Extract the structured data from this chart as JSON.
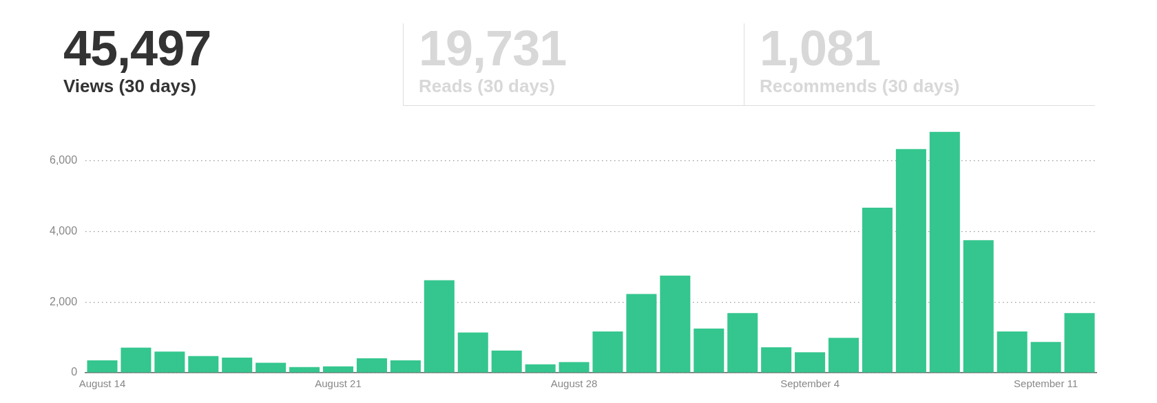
{
  "chart_data": [
    {
      "type": "other",
      "annotations": [
        "45,497",
        "Views (30 days)",
        "19,731",
        "Reads (30 days)",
        "1,081",
        "Recommends (30 days)"
      ]
    },
    {
      "type": "bar",
      "categories": [
        "August 14",
        null,
        null,
        null,
        null,
        null,
        null,
        "August 21",
        null,
        null,
        null,
        null,
        null,
        null,
        "August 28",
        null,
        null,
        null,
        null,
        null,
        null,
        "September 4",
        null,
        null,
        null,
        null,
        null,
        null,
        "September 11",
        null
      ],
      "color": "#34c68e",
      "values": [
        350,
        710,
        600,
        470,
        430,
        280,
        160,
        180,
        410,
        350,
        2620,
        1140,
        630,
        240,
        300,
        1170,
        2230,
        2750,
        1250,
        1690,
        720,
        580,
        990,
        4670,
        6330,
        6820,
        3750,
        1170,
        870,
        1690
      ],
      "ylim": [
        0,
        6820
      ],
      "yticks": [
        {
          "value": 0,
          "label": "0"
        },
        {
          "value": 2000,
          "label": "2,000"
        },
        {
          "value": 4000,
          "label": "4,000"
        },
        {
          "value": 6000,
          "label": "6,000"
        }
      ],
      "grid": "y",
      "legend": false
    }
  ]
}
